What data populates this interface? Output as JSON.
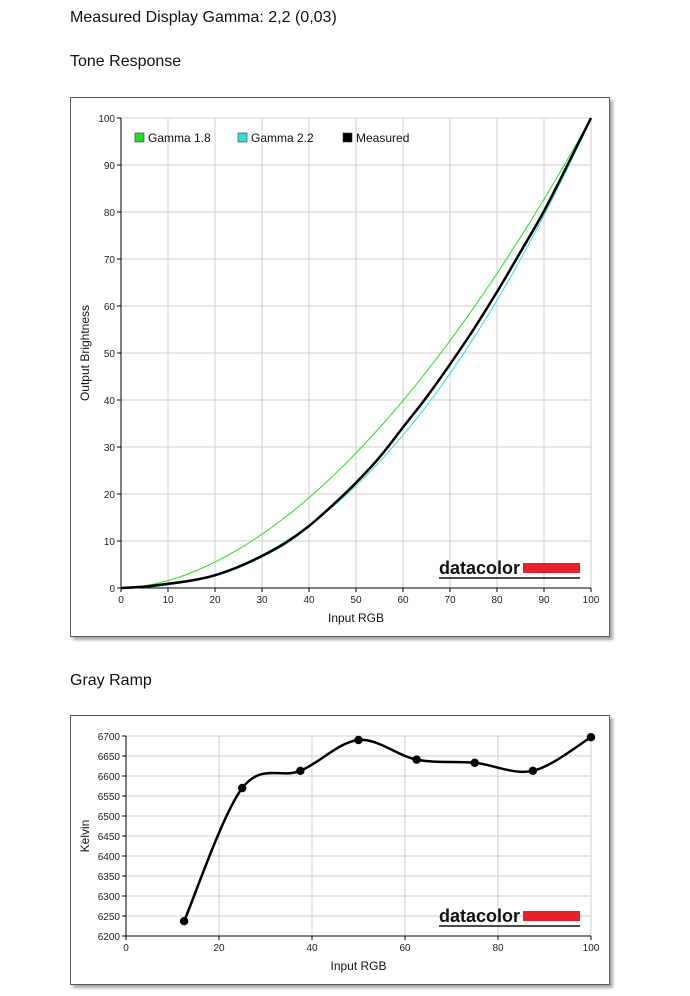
{
  "page": {
    "title": "Measured Display Gamma: 2,2 (0,03)",
    "tone_heading": "Tone Response",
    "ramp_heading": "Gray Ramp",
    "brand": "datacolor",
    "brand_color": "#e8202a"
  },
  "chart_data": [
    {
      "type": "line",
      "title": "Tone Response",
      "xlabel": "Input RGB",
      "ylabel": "Output Brightness",
      "xlim": [
        0,
        100
      ],
      "ylim": [
        0,
        100
      ],
      "xticks": [
        0,
        10,
        20,
        30,
        40,
        50,
        60,
        70,
        80,
        90,
        100
      ],
      "yticks": [
        0,
        10,
        20,
        30,
        40,
        50,
        60,
        70,
        80,
        90,
        100
      ],
      "grid": true,
      "legend": "top-left",
      "series": [
        {
          "name": "Gamma 1.8",
          "color": "#22dd22",
          "gamma": 1.8
        },
        {
          "name": "Gamma 2.2",
          "color": "#33dddd",
          "gamma": 2.2
        },
        {
          "name": "Measured",
          "color": "#000000",
          "x": [
            0,
            5,
            10,
            15,
            20,
            25,
            30,
            35,
            40,
            45,
            50,
            55,
            60,
            65,
            70,
            75,
            80,
            85,
            90,
            95,
            100
          ],
          "y": [
            0,
            0.3,
            0.9,
            1.6,
            2.7,
            4.5,
            6.8,
            9.6,
            13.2,
            17.6,
            22.4,
            27.8,
            34.2,
            40.6,
            47.6,
            55.0,
            63.0,
            71.5,
            80.2,
            90.0,
            100
          ]
        }
      ]
    },
    {
      "type": "line",
      "title": "Gray Ramp",
      "xlabel": "Input RGB",
      "ylabel": "Kelvin",
      "xlim": [
        0,
        100
      ],
      "ylim": [
        6200,
        6700
      ],
      "xticks": [
        0,
        20,
        40,
        60,
        80,
        100
      ],
      "yticks": [
        6200,
        6250,
        6300,
        6350,
        6400,
        6450,
        6500,
        6550,
        6600,
        6650,
        6700
      ],
      "grid": true,
      "series": [
        {
          "color": "#000000",
          "x": [
            12.5,
            25,
            37.5,
            50,
            62.5,
            75,
            87.5,
            100
          ],
          "y": [
            6237,
            6570,
            6613,
            6690,
            6641,
            6633,
            6613,
            6697
          ]
        }
      ]
    }
  ]
}
